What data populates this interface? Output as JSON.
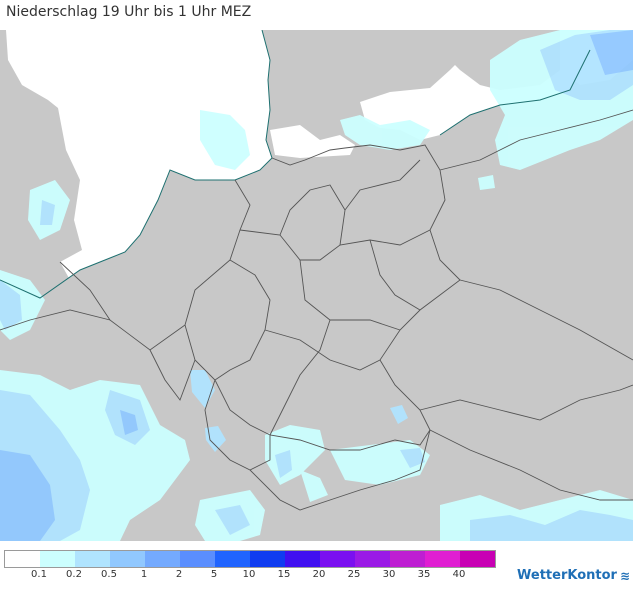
{
  "title": "Niederschlag 19 Uhr bis 1 Uhr MEZ",
  "brand": "WetterKontor",
  "brand_icon": "wave-icon",
  "colors": {
    "land": "#c8c8c8",
    "water": "#ffffff",
    "border": "#555555",
    "coast": "#1e7070"
  },
  "legend": {
    "swatches": [
      "#ffffff",
      "#ccffff",
      "#b0e4ff",
      "#91c8ff",
      "#74aaff",
      "#5a8eff",
      "#2064ff",
      "#103cf0",
      "#4010f0",
      "#7a10f0",
      "#9a1ae6",
      "#be1ed2",
      "#e01ed2",
      "#c800b4"
    ],
    "ticks": [
      "0.1",
      "0.2",
      "0.5",
      "1",
      "2",
      "5",
      "10",
      "15",
      "20",
      "25",
      "30",
      "35",
      "40"
    ]
  }
}
